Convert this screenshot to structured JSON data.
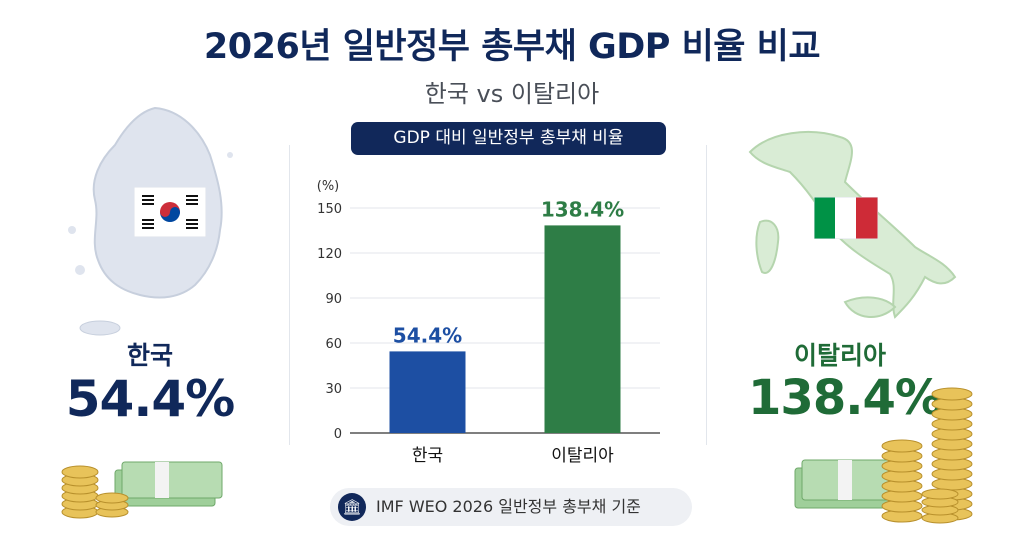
{
  "title": "2026년 일반정부 총부채 GDP 비율 비교",
  "subtitle": "한국 vs 이탈리아",
  "chart_badge": "GDP 대비 일반정부 총부채 비율",
  "left_panel": {
    "name": "한국",
    "value": "54.4%",
    "flag": "south-korea-flag-icon",
    "map": "south-korea-map-icon"
  },
  "right_panel": {
    "name": "이탈리아",
    "value": "138.4%",
    "flag": "italy-flag-icon",
    "map": "italy-map-icon"
  },
  "footer": {
    "text": "IMF WEO 2026 일반정부 총부채 기준",
    "icon": "institution-icon"
  },
  "colors": {
    "navy": "#10285a",
    "korea_bar": "#1d4fa3",
    "italy_bar": "#2e7d46"
  },
  "chart_data": {
    "type": "bar",
    "categories": [
      "한국",
      "이탈리아"
    ],
    "values": [
      54.4,
      138.4
    ],
    "value_labels": [
      "54.4%",
      "138.4%"
    ],
    "bar_colors": [
      "#1d4fa3",
      "#2e7d46"
    ],
    "unit_label": "(%)",
    "ylim": [
      0,
      150
    ],
    "yticks": [
      0,
      30,
      60,
      90,
      120,
      150
    ],
    "grid": true
  }
}
